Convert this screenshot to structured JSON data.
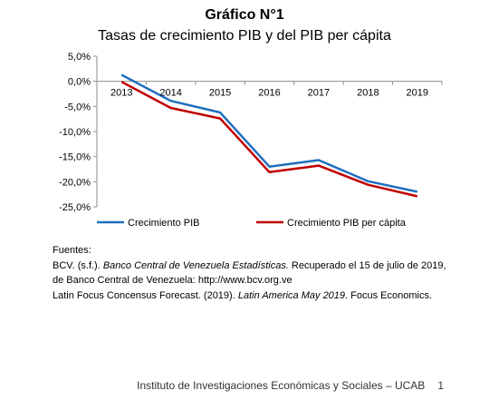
{
  "chart_data": {
    "type": "line",
    "title": "Gráfico N°1",
    "subtitle": "Tasas de crecimiento PIB y del PIB per cápita",
    "x": [
      "2013",
      "2014",
      "2015",
      "2016",
      "2017",
      "2018",
      "2019"
    ],
    "series": [
      {
        "name": "Crecimiento PIB",
        "color": "#1f6fbf",
        "values": [
          1.3,
          -3.9,
          -6.2,
          -17.0,
          -15.7,
          -19.9,
          -22.0
        ]
      },
      {
        "name": "Crecimiento PIB per cápita",
        "color": "#c00000",
        "values": [
          -0.1,
          -5.3,
          -7.4,
          -18.1,
          -16.8,
          -20.6,
          -22.9
        ]
      }
    ],
    "ylim": [
      -25,
      5
    ],
    "yticks": [
      5,
      0,
      -5,
      -10,
      -15,
      -20,
      -25
    ],
    "ytick_labels": [
      "5,0%",
      "0,0%",
      "-5,0%",
      "-10,0%",
      "-15,0%",
      "-20,0%",
      "-25,0%"
    ],
    "legend_position": "bottom",
    "grid": false
  },
  "sources": {
    "heading": "Fuentes:",
    "ref1_a": "BCV. (s.f.). ",
    "ref1_b": "Banco Central de Venezuela Estadísticas.",
    "ref1_c": " Recuperado el 15 de julio de 2019, de Banco Central de Venezuela: http://www.bcv.org.ve",
    "ref2_a": "Latin Focus Concensus Forecast. (2019). ",
    "ref2_b": "Latin America May 2019",
    "ref2_c": ". Focus Economics."
  },
  "footer": {
    "institution": "Instituto de Investigaciones Económicas y Sociales – UCAB",
    "page_number": "1"
  }
}
